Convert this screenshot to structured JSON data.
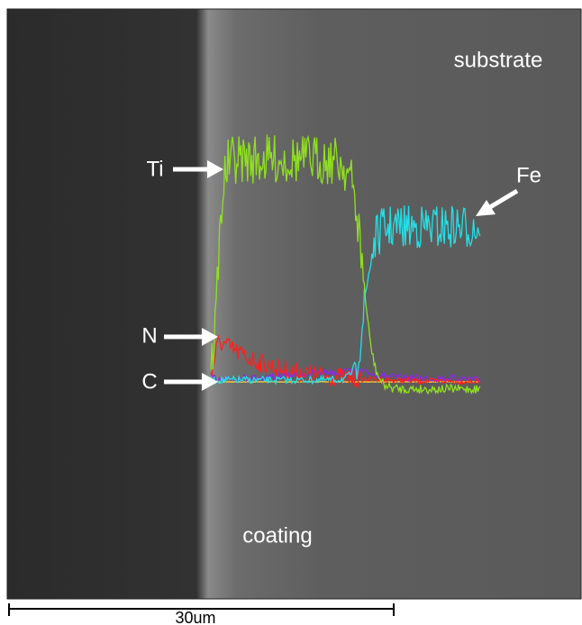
{
  "image": {
    "labels": [
      {
        "text": "substrate"
      },
      {
        "text": "Ti"
      },
      {
        "text": "Fe"
      },
      {
        "text": "N"
      },
      {
        "text": "C"
      },
      {
        "text": "coating"
      }
    ]
  },
  "scale_bar": {
    "label": "30um"
  }
}
